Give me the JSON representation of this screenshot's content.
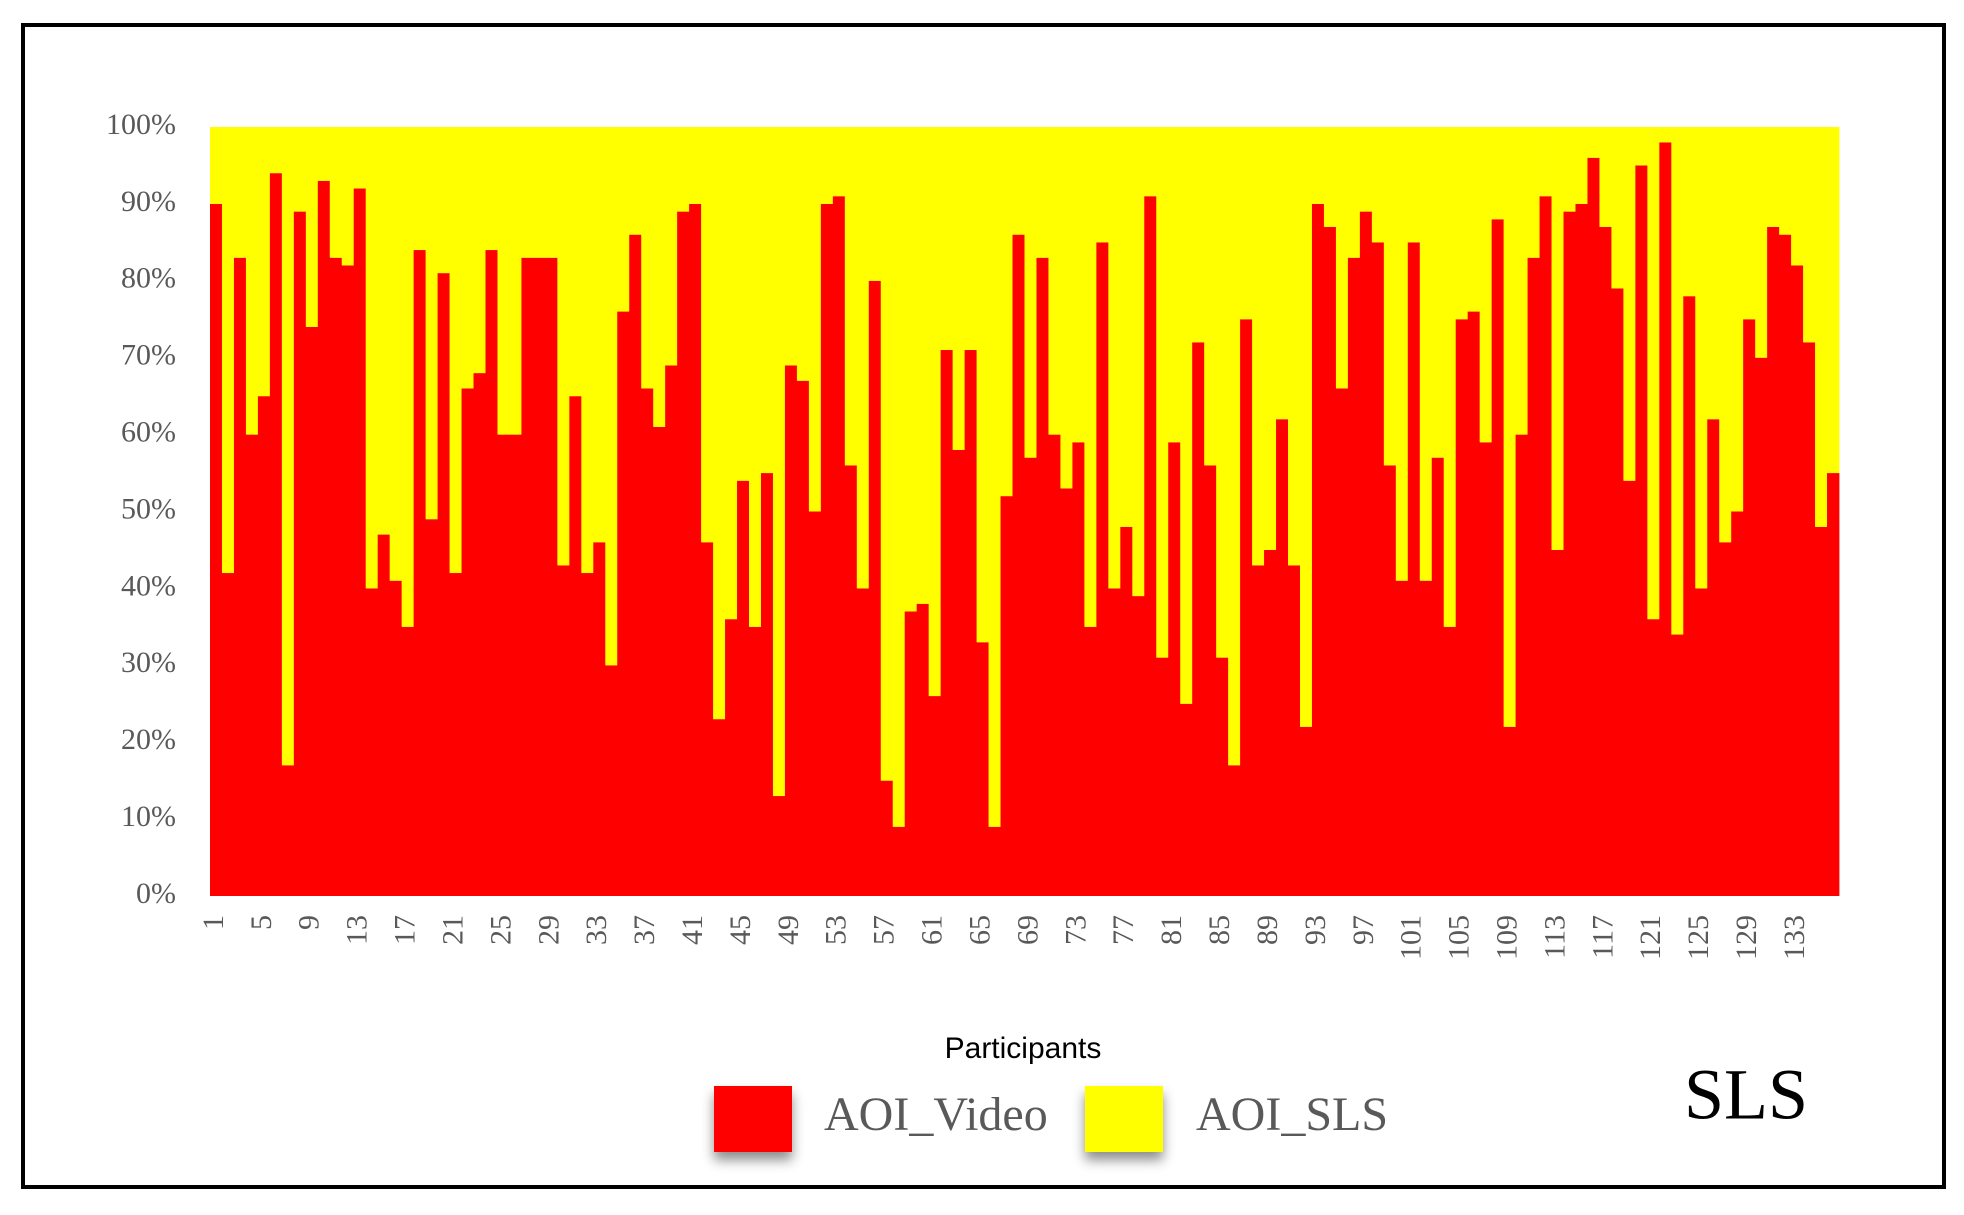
{
  "chart_data": {
    "type": "stacked_bar",
    "x_label": "Participants",
    "annotation": "SLS",
    "categories": [
      1,
      null,
      null,
      null,
      5,
      null,
      null,
      null,
      9,
      null,
      null,
      null,
      13,
      null,
      null,
      null,
      17,
      null,
      null,
      null,
      21,
      null,
      null,
      null,
      25,
      null,
      null,
      null,
      29,
      null,
      null,
      null,
      33,
      null,
      null,
      null,
      37,
      null,
      null,
      null,
      41,
      null,
      null,
      null,
      45,
      null,
      null,
      null,
      49,
      null,
      null,
      null,
      53,
      null,
      null,
      null,
      57,
      null,
      null,
      null,
      61,
      null,
      null,
      null,
      65,
      null,
      null,
      null,
      69,
      null,
      null,
      null,
      73,
      null,
      null,
      null,
      77,
      null,
      null,
      null,
      81,
      null,
      null,
      null,
      85,
      null,
      null,
      null,
      89,
      null,
      null,
      null,
      93,
      null,
      null,
      null,
      97,
      null,
      null,
      null,
      101,
      null,
      null,
      null,
      105,
      null,
      null,
      null,
      109,
      null,
      null,
      null,
      113,
      null,
      null,
      null,
      117,
      null,
      null,
      null,
      121,
      null,
      null,
      null,
      125,
      null,
      null,
      null,
      129,
      null,
      null,
      null,
      133,
      null,
      null,
      null
    ],
    "series": [
      {
        "name": "AOI_Video",
        "color": "#ff0000",
        "values": [
          90,
          42,
          83,
          60,
          65,
          94,
          17,
          89,
          74,
          93,
          83,
          82,
          92,
          40,
          47,
          41,
          35,
          84,
          49,
          81,
          42,
          66,
          68,
          84,
          60,
          60,
          83,
          83,
          83,
          43,
          65,
          42,
          46,
          30,
          76,
          86,
          66,
          61,
          69,
          89,
          90,
          46,
          23,
          36,
          54,
          35,
          55,
          13,
          69,
          67,
          50,
          90,
          91,
          56,
          40,
          80,
          15,
          9,
          37,
          38,
          26,
          71,
          58,
          71,
          33,
          9,
          52,
          86,
          57,
          83,
          60,
          53,
          59,
          35,
          85,
          40,
          48,
          39,
          91,
          31,
          59,
          25,
          72,
          56,
          31,
          17,
          75,
          43,
          45,
          62,
          43,
          22,
          90,
          87,
          66,
          83,
          89,
          85,
          56,
          41,
          85,
          41,
          57,
          35,
          75,
          76,
          59,
          88,
          22,
          60,
          83,
          91,
          45,
          89,
          90,
          96,
          87,
          79,
          54,
          95,
          36,
          98,
          34,
          78,
          40,
          62,
          46,
          50,
          75,
          70,
          87,
          86,
          82,
          72,
          48,
          55
        ]
      },
      {
        "name": "AOI_SLS",
        "color": "#ffff00",
        "values": [
          10,
          58,
          17,
          40,
          35,
          6,
          83,
          11,
          26,
          7,
          17,
          18,
          8,
          60,
          53,
          59,
          65,
          16,
          51,
          19,
          58,
          34,
          32,
          16,
          40,
          40,
          17,
          17,
          17,
          57,
          35,
          58,
          54,
          70,
          24,
          14,
          34,
          39,
          31,
          11,
          10,
          54,
          77,
          64,
          46,
          65,
          45,
          87,
          31,
          33,
          50,
          10,
          9,
          44,
          60,
          20,
          85,
          91,
          63,
          62,
          74,
          29,
          42,
          29,
          67,
          91,
          48,
          14,
          43,
          17,
          40,
          47,
          41,
          65,
          15,
          60,
          52,
          61,
          9,
          69,
          41,
          75,
          28,
          44,
          69,
          83,
          25,
          57,
          55,
          38,
          57,
          78,
          10,
          13,
          34,
          17,
          11,
          15,
          44,
          59,
          15,
          59,
          43,
          65,
          25,
          24,
          41,
          12,
          78,
          40,
          17,
          9,
          55,
          11,
          10,
          4,
          13,
          21,
          46,
          5,
          64,
          2,
          66,
          22,
          60,
          38,
          54,
          50,
          25,
          30,
          13,
          14,
          18,
          28,
          52,
          45
        ]
      }
    ],
    "ylim": [
      0,
      100
    ],
    "yticks": [
      {
        "value": 0,
        "label": "0%"
      },
      {
        "value": 10,
        "label": "10%"
      },
      {
        "value": 20,
        "label": "20%"
      },
      {
        "value": 30,
        "label": "30%"
      },
      {
        "value": 40,
        "label": "40%"
      },
      {
        "value": 50,
        "label": "50%"
      },
      {
        "value": 60,
        "label": "60%"
      },
      {
        "value": 70,
        "label": "70%"
      },
      {
        "value": 80,
        "label": "80%"
      },
      {
        "value": 90,
        "label": "90%"
      },
      {
        "value": 100,
        "label": "100%"
      }
    ],
    "grid": false
  }
}
